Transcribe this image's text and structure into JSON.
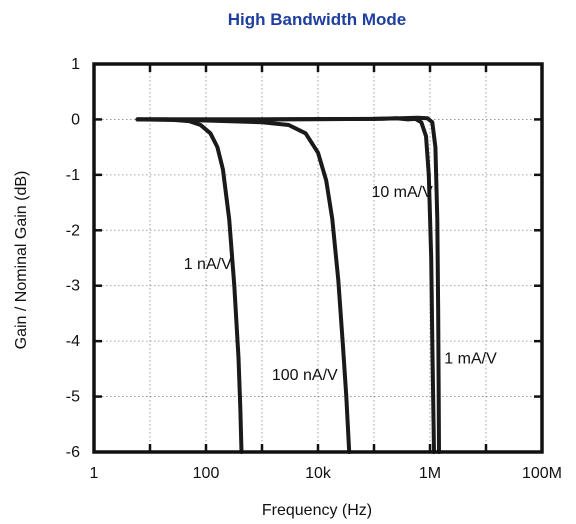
{
  "chart_data": {
    "type": "line",
    "title": "High Bandwidth Mode",
    "xlabel": "Frequency  (Hz)",
    "ylabel": "Gain / Nominal Gain  (dB)",
    "x_scale": "log",
    "xlim": [
      1,
      100000000
    ],
    "ylim": [
      -6,
      1
    ],
    "x_ticks": [
      1,
      100,
      10000,
      1000000,
      100000000
    ],
    "x_tick_labels": [
      "1",
      "100",
      "10k",
      "1M",
      "100M"
    ],
    "y_ticks": [
      1,
      0,
      -1,
      -2,
      -3,
      -4,
      -5,
      -6
    ],
    "y_tick_labels": [
      "1",
      "0",
      "-1",
      "-2",
      "-3",
      "-4",
      "-5",
      "-6"
    ],
    "grid": true,
    "series": [
      {
        "name": "1 nA/V",
        "x": [
          6,
          20,
          50,
          80,
          120,
          160,
          200,
          260,
          320,
          380,
          410,
          430
        ],
        "y": [
          0,
          0,
          -0.03,
          -0.1,
          -0.25,
          -0.5,
          -0.9,
          -1.8,
          -3,
          -4.3,
          -5.2,
          -6
        ]
      },
      {
        "name": "100 nA/V",
        "x": [
          6,
          100,
          1000,
          3000,
          6000,
          10000,
          14000,
          18000,
          23000,
          28000,
          32000,
          36000
        ],
        "y": [
          0,
          -0.02,
          -0.05,
          -0.1,
          -0.25,
          -0.6,
          -1.1,
          -1.8,
          -2.9,
          -4.1,
          -5,
          -6
        ]
      },
      {
        "name": "10 mA/V",
        "x": [
          6,
          1000,
          100000,
          250000,
          400000,
          550000,
          700000,
          850000,
          950000,
          1050000,
          1100000,
          1150000,
          1180000
        ],
        "y": [
          0,
          0,
          0.01,
          0.02,
          0,
          0.01,
          -0.05,
          -0.3,
          -1,
          -2.5,
          -4,
          -5.3,
          -6
        ]
      },
      {
        "name": "1 mA/V",
        "x": [
          6,
          1000,
          100000,
          300000,
          600000,
          900000,
          1100000,
          1250000,
          1350000,
          1400000,
          1430000,
          1450000
        ],
        "y": [
          0,
          0,
          0.01,
          0.02,
          0.03,
          0.02,
          -0.05,
          -0.5,
          -1.8,
          -3.5,
          -5,
          -6
        ]
      }
    ],
    "annotations": [
      {
        "text": "1 nA/V",
        "x": 40,
        "y": -2.7
      },
      {
        "text": "100 nA/V",
        "x": 1500,
        "y": -4.7
      },
      {
        "text": "10 mA/V",
        "x": 90000,
        "y": -1.4
      },
      {
        "text": "1 mA/V",
        "x": 1800000,
        "y": -4.4
      }
    ],
    "colors": {
      "title": "#1f3f9f",
      "curve": "#1a1a1a",
      "frame": "#111111",
      "grid": "#888888"
    }
  }
}
